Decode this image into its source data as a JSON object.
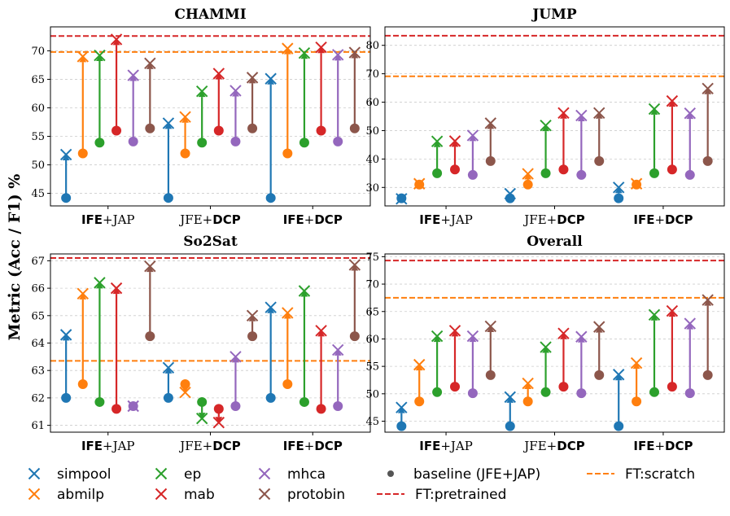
{
  "figure": {
    "ylabel": "Metric (Acc / F1) %",
    "colors": {
      "simpool": "#1f77b4",
      "abmilp": "#ff7f0e",
      "ep": "#2ca02c",
      "mab": "#d62728",
      "mhca": "#9467bd",
      "protobin": "#8c564b",
      "baseline": "#555555",
      "ft_pretrained": "#d62728",
      "ft_scratch": "#ff7f0e"
    },
    "legend": [
      {
        "key": "simpool",
        "label": "simpool",
        "marker": "x"
      },
      {
        "key": "abmilp",
        "label": "abmilp",
        "marker": "x"
      },
      {
        "key": "ep",
        "label": "ep",
        "marker": "x"
      },
      {
        "key": "mab",
        "label": "mab",
        "marker": "x"
      },
      {
        "key": "mhca",
        "label": "mhca",
        "marker": "x"
      },
      {
        "key": "protobin",
        "label": "protobin",
        "marker": "x"
      },
      {
        "key": "baseline",
        "label": "baseline (JFE+JAP)",
        "marker": "dot"
      },
      {
        "key": "ft_pretrained",
        "label": "FT:pretrained",
        "marker": "dash"
      },
      {
        "key": "ft_scratch",
        "label": "FT:scratch",
        "marker": "dash"
      }
    ]
  },
  "chart_data": [
    {
      "type": "dumbbell",
      "title": "CHAMMI",
      "categories": [
        {
          "parts": [
            {
              "text": "IFE",
              "bold": true
            },
            {
              "text": "+JAP",
              "bold": false
            }
          ]
        },
        {
          "parts": [
            {
              "text": "JFE+",
              "bold": false
            },
            {
              "text": "DCP",
              "bold": true
            }
          ]
        },
        {
          "parts": [
            {
              "text": "IFE",
              "bold": true
            },
            {
              "text": "+",
              "bold": false
            },
            {
              "text": "DCP",
              "bold": true
            }
          ]
        }
      ],
      "methods": [
        "simpool",
        "abmilp",
        "ep",
        "mab",
        "mhca",
        "protobin"
      ],
      "baseline": [
        44.2,
        52.0,
        53.9,
        56.0,
        54.1,
        56.4
      ],
      "values": [
        [
          51.8,
          69.0,
          69.2,
          72.0,
          65.7,
          67.8
        ],
        [
          57.3,
          58.4,
          62.9,
          66.0,
          63.0,
          65.3
        ],
        [
          65.1,
          70.4,
          69.6,
          70.6,
          69.3,
          69.7
        ]
      ],
      "ft_pretrained": 72.6,
      "ft_scratch": 69.8,
      "ylim": [
        42.8,
        74.2
      ],
      "yticks": [
        45,
        50,
        55,
        60,
        65,
        70
      ]
    },
    {
      "type": "dumbbell",
      "title": "JUMP",
      "categories": [
        {
          "parts": [
            {
              "text": "IFE",
              "bold": true
            },
            {
              "text": "+JAP",
              "bold": false
            }
          ]
        },
        {
          "parts": [
            {
              "text": "JFE+",
              "bold": false
            },
            {
              "text": "DCP",
              "bold": true
            }
          ]
        },
        {
          "parts": [
            {
              "text": "IFE",
              "bold": true
            },
            {
              "text": "+",
              "bold": false
            },
            {
              "text": "DCP",
              "bold": true
            }
          ]
        }
      ],
      "methods": [
        "simpool",
        "abmilp",
        "ep",
        "mab",
        "mhca",
        "protobin"
      ],
      "baseline": [
        26.2,
        31.0,
        35.0,
        36.3,
        34.4,
        39.3
      ],
      "values": [
        [
          26.0,
          31.3,
          46.2,
          46.3,
          48.3,
          52.6
        ],
        [
          27.8,
          34.8,
          51.8,
          56.2,
          55.3,
          56.2
        ],
        [
          30.0,
          31.3,
          57.6,
          60.4,
          56.1,
          64.8
        ]
      ],
      "ft_pretrained": 83.4,
      "ft_scratch": 69.1,
      "ylim": [
        23.5,
        86.5
      ],
      "yticks": [
        30,
        40,
        50,
        60,
        70,
        80
      ]
    },
    {
      "type": "dumbbell",
      "title": "So2Sat",
      "categories": [
        {
          "parts": [
            {
              "text": "IFE",
              "bold": true
            },
            {
              "text": "+JAP",
              "bold": false
            }
          ]
        },
        {
          "parts": [
            {
              "text": "JFE+",
              "bold": false
            },
            {
              "text": "DCP",
              "bold": true
            }
          ]
        },
        {
          "parts": [
            {
              "text": "IFE",
              "bold": true
            },
            {
              "text": "+",
              "bold": false
            },
            {
              "text": "DCP",
              "bold": true
            }
          ]
        }
      ],
      "methods": [
        "simpool",
        "abmilp",
        "ep",
        "mab",
        "mhca",
        "protobin"
      ],
      "baseline": [
        62.0,
        62.5,
        61.85,
        61.6,
        61.7,
        64.25
      ],
      "values": [
        [
          64.3,
          65.8,
          66.2,
          66.0,
          61.7,
          66.8
        ],
        [
          63.1,
          62.2,
          61.25,
          61.1,
          63.5,
          65.0
        ],
        [
          65.3,
          65.1,
          65.9,
          64.45,
          63.75,
          66.85
        ]
      ],
      "ft_pretrained": 67.1,
      "ft_scratch": 63.35,
      "ylim": [
        60.75,
        67.25
      ],
      "yticks": [
        61,
        62,
        63,
        64,
        65,
        66,
        67
      ]
    },
    {
      "type": "dumbbell",
      "title": "Overall",
      "categories": [
        {
          "parts": [
            {
              "text": "IFE",
              "bold": true
            },
            {
              "text": "+JAP",
              "bold": false
            }
          ]
        },
        {
          "parts": [
            {
              "text": "JFE+",
              "bold": false
            },
            {
              "text": "DCP",
              "bold": true
            }
          ]
        },
        {
          "parts": [
            {
              "text": "IFE",
              "bold": true
            },
            {
              "text": "+",
              "bold": false
            },
            {
              "text": "DCP",
              "bold": true
            }
          ]
        }
      ],
      "methods": [
        "simpool",
        "abmilp",
        "ep",
        "mab",
        "mhca",
        "protobin"
      ],
      "baseline": [
        44.1,
        48.6,
        50.3,
        51.3,
        50.1,
        53.4
      ],
      "values": [
        [
          47.5,
          55.3,
          60.5,
          61.5,
          60.5,
          62.3
        ],
        [
          49.4,
          51.9,
          58.5,
          61.0,
          60.4,
          62.2
        ],
        [
          53.5,
          55.6,
          64.4,
          65.1,
          62.8,
          67.1
        ]
      ],
      "ft_pretrained": 74.3,
      "ft_scratch": 67.5,
      "ylim": [
        43.0,
        75.5
      ],
      "yticks": [
        45,
        50,
        55,
        60,
        65,
        70,
        75
      ]
    }
  ]
}
